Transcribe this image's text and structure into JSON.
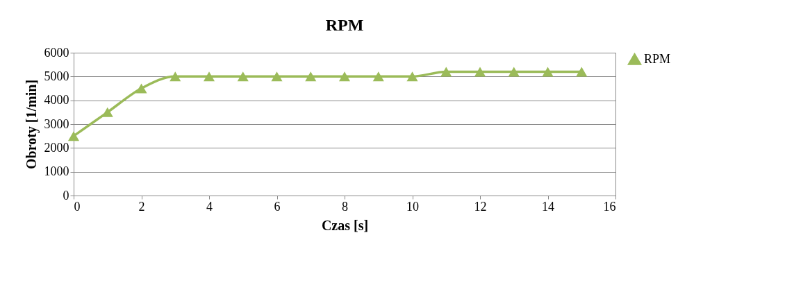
{
  "chart_data": {
    "type": "line",
    "title": "RPM",
    "xlabel": "Czas [s]",
    "ylabel": "Obroty [1/min]",
    "x": [
      0,
      1,
      2,
      3,
      4,
      5,
      6,
      7,
      8,
      9,
      10,
      11,
      12,
      13,
      14,
      15
    ],
    "series": [
      {
        "name": "RPM",
        "color": "#9bbb59",
        "values": [
          2500,
          3500,
          4500,
          5000,
          5000,
          5000,
          5000,
          5000,
          5000,
          5000,
          5000,
          5200,
          5200,
          5200,
          5200,
          5200
        ]
      }
    ],
    "xlim": [
      0,
      16
    ],
    "xticks": [
      0,
      2,
      4,
      6,
      8,
      10,
      12,
      14,
      16
    ],
    "ylim": [
      0,
      6000
    ],
    "yticks": [
      0,
      1000,
      2000,
      3000,
      4000,
      5000,
      6000
    ],
    "grid": "y",
    "legend": "right",
    "marker": "triangle",
    "line_style": "solid"
  }
}
